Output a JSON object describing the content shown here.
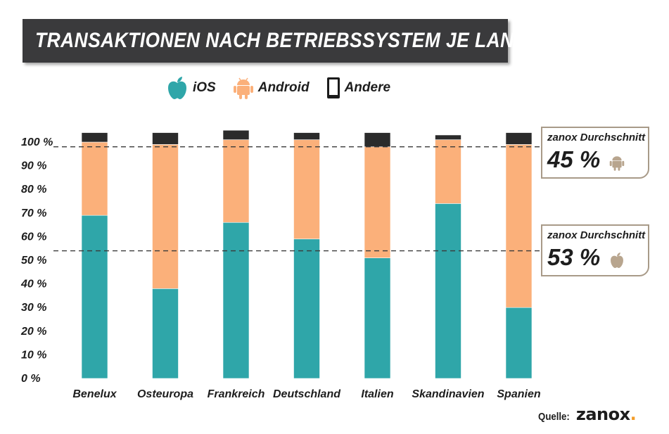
{
  "title": "TRANSAKTIONEN NACH BETRIEBSSYSTEM JE LAND",
  "legend": {
    "ios": "iOS",
    "android": "Android",
    "other": "Andere"
  },
  "colors": {
    "ios": "#2fa6a9",
    "android": "#fbb07a",
    "other": "#2b2b2b",
    "callout_border": "#a89a88",
    "callout_icon": "#b8a58e",
    "title_bg": "#3a3a3c",
    "brand_dot": "#f39c28"
  },
  "chart_data": {
    "type": "bar",
    "stacked": true,
    "categories": [
      "Benelux",
      "Osteuropa",
      "Frankreich",
      "Deutschland",
      "Italien",
      "Skandinavien",
      "Spanien"
    ],
    "series": [
      {
        "name": "iOS",
        "values": [
          69,
          38,
          66,
          59,
          51,
          74,
          30
        ]
      },
      {
        "name": "Android",
        "values": [
          31,
          61,
          35,
          42,
          47,
          27,
          69
        ]
      },
      {
        "name": "Andere",
        "values": [
          4,
          5,
          4,
          3,
          6,
          2,
          5
        ]
      }
    ],
    "y_ticks": [
      "0 %",
      "10 %",
      "20 %",
      "30 %",
      "40 %",
      "50 %",
      "60 %",
      "70 %",
      "80 %",
      "90 %",
      "100 %"
    ],
    "ylim": [
      0,
      105
    ],
    "reference_lines": [
      {
        "label": "zanox Durchschnitt",
        "value_text": "45 %",
        "icon": "android-icon",
        "y": 98
      },
      {
        "label": "zanox Durchschnitt",
        "value_text": "53 %",
        "icon": "apple-icon",
        "y": 54
      }
    ],
    "grid": false,
    "legend_position": "top"
  },
  "source": {
    "label": "Quelle:",
    "brand": "zanox",
    "brand_dot": "."
  }
}
